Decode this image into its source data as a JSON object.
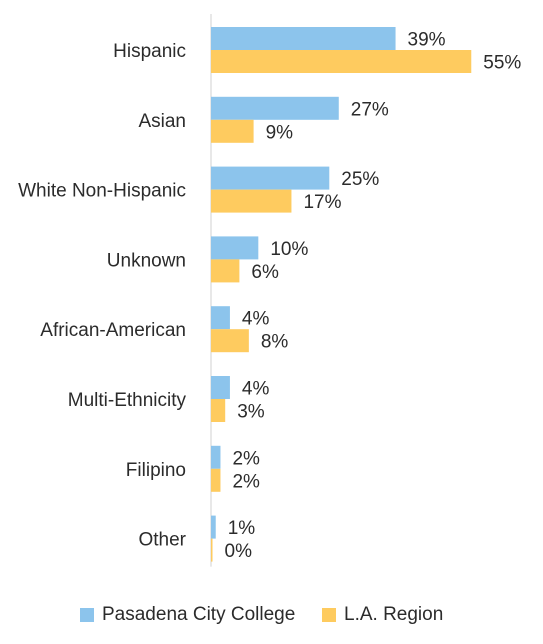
{
  "chart_data": {
    "type": "bar",
    "orientation": "horizontal",
    "categories": [
      "Hispanic",
      "Asian",
      "White Non-Hispanic",
      "Unknown",
      "African-American",
      "Multi-Ethnicity",
      "Filipino",
      "Other"
    ],
    "series": [
      {
        "name": "Pasadena City College",
        "color": "#8cc4ec",
        "values": [
          39,
          27,
          25,
          10,
          4,
          4,
          2,
          1
        ],
        "labels": [
          "39%",
          "27%",
          "25%",
          "10%",
          "4%",
          "4%",
          "2%",
          "1%"
        ]
      },
      {
        "name": "L.A. Region",
        "color": "#fecb5f",
        "values": [
          55,
          9,
          17,
          6,
          8,
          3,
          2,
          0
        ],
        "labels": [
          "55%",
          "9%",
          "17%",
          "6%",
          "8%",
          "3%",
          "2%",
          "0%"
        ]
      }
    ],
    "xlim": [
      0,
      56
    ],
    "grid": false,
    "legend_position": "bottom"
  }
}
